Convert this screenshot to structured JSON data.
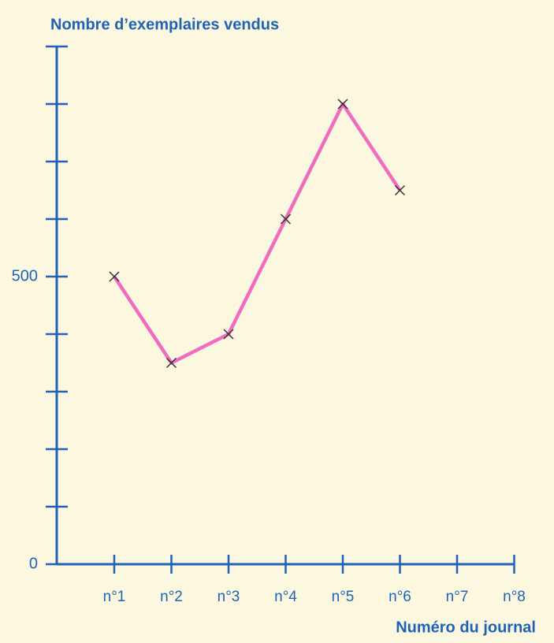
{
  "chart_data": {
    "type": "line",
    "title": "Nombre d’exemplaires vendus",
    "x_label": "Numéro du journal",
    "categories": [
      "n°1",
      "n°2",
      "n°3",
      "n°4",
      "n°5",
      "n°6",
      "n°7",
      "n°8"
    ],
    "series": [
      {
        "name": null,
        "color": "#f06cc0",
        "values": [
          500,
          350,
          400,
          600,
          800,
          650,
          null,
          null
        ]
      }
    ],
    "ylim": [
      0,
      900
    ],
    "yticks": [
      0,
      500
    ],
    "y_minor_ticks": [
      100,
      200,
      300,
      400,
      600,
      700,
      800,
      900
    ],
    "axis_color": "#1f63b8",
    "marker": "x"
  }
}
